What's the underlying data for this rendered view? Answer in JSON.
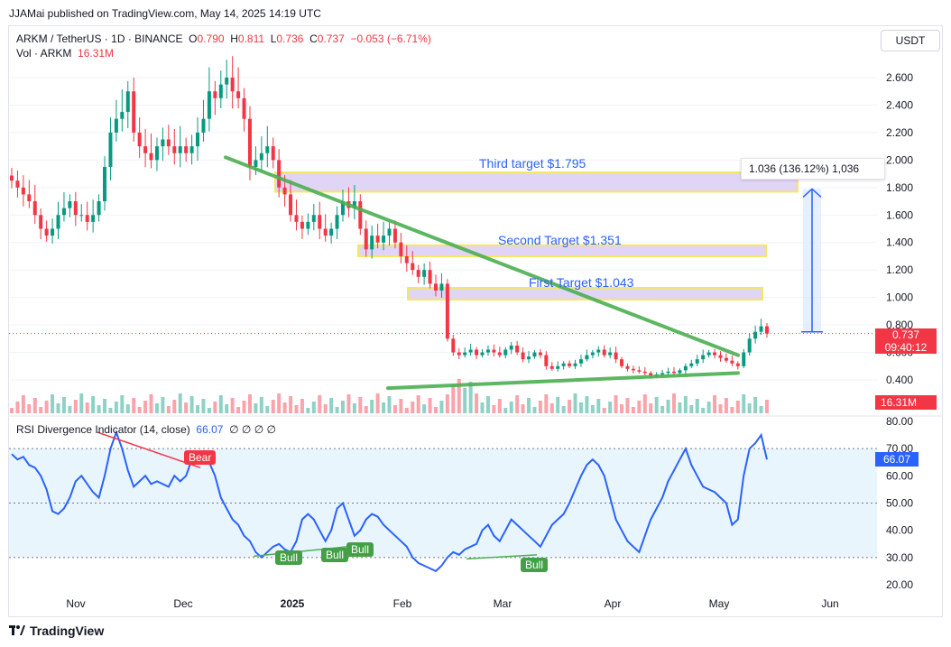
{
  "header": {
    "publisher": "JJAMai published on TradingView.com, May 14, 2025 14:19 UTC"
  },
  "symbol": {
    "name": "ARKM / TetherUS · 1D · BINANCE",
    "o_label": "O",
    "o": "0.790",
    "h_label": "H",
    "h": "0.811",
    "l_label": "L",
    "l": "0.736",
    "c_label": "C",
    "c": "0.737",
    "change": "−0.053 (−6.71%)",
    "vol_label": "Vol · ARKM",
    "vol": "16.31M"
  },
  "currency": "USDT",
  "price_axis": [
    "2.600",
    "2.400",
    "2.200",
    "2.000",
    "1.800",
    "1.600",
    "1.400",
    "1.200",
    "1.000",
    "0.800",
    "0.600",
    "0.400"
  ],
  "last_price": {
    "price": "0.737",
    "countdown": "09:40:12"
  },
  "volume_tag": "16.31M",
  "measure": {
    "text": "1.036 (136.12%) 1,036"
  },
  "targets": {
    "third": "Third target $1.795",
    "second": "Second Target $1.351",
    "first": "First Target $1.043"
  },
  "rsi": {
    "title": "RSI Divergence Indicator (14, close)",
    "value": "66.07",
    "extras": "∅ ∅ ∅ ∅",
    "axis": [
      "80.00",
      "70.00",
      "60.00",
      "50.00",
      "40.00",
      "30.00",
      "20.00"
    ],
    "tag": "66.07",
    "bear_label": "Bear",
    "bull_labels": [
      "Bull",
      "Bull",
      "Bull",
      "Bull"
    ]
  },
  "time_axis": [
    "Nov",
    "Dec",
    "2025",
    "Feb",
    "Mar",
    "Apr",
    "May",
    "Jun"
  ],
  "footer": {
    "brand": "TradingView"
  },
  "colors": {
    "up": "#089981",
    "down": "#f23645",
    "rsi": "#2962ff",
    "trend": "#4caf50",
    "zone_fill": "#e1d5f5",
    "zone_border": "#f5e663"
  },
  "chart_data": [
    {
      "type": "candlestick",
      "title": "ARKM / TetherUS · 1D · BINANCE",
      "ylim": [
        0.3,
        2.7
      ],
      "x": [
        "Nov",
        "Dec",
        "2025",
        "Feb",
        "Mar",
        "Apr",
        "May",
        "Jun"
      ],
      "last": {
        "open": 0.79,
        "high": 0.811,
        "low": 0.736,
        "close": 0.737
      },
      "targets": [
        1.043,
        1.351,
        1.795
      ],
      "closes": [
        1.85,
        1.8,
        1.75,
        1.7,
        1.6,
        1.5,
        1.45,
        1.5,
        1.6,
        1.65,
        1.7,
        1.6,
        1.6,
        1.55,
        1.6,
        1.7,
        1.95,
        2.2,
        2.3,
        2.35,
        2.5,
        2.2,
        2.1,
        2.05,
        2.0,
        2.1,
        2.15,
        2.1,
        2.05,
        2.1,
        2.05,
        2.1,
        2.2,
        2.3,
        2.5,
        2.45,
        2.55,
        2.6,
        2.5,
        2.45,
        2.3,
        1.95,
        2.0,
        2.05,
        2.1,
        2.0,
        1.8,
        1.75,
        1.6,
        1.55,
        1.5,
        1.55,
        1.6,
        1.5,
        1.45,
        1.5,
        1.6,
        1.7,
        1.65,
        1.7,
        1.5,
        1.35,
        1.45,
        1.4,
        1.45,
        1.5,
        1.4,
        1.3,
        1.25,
        1.2,
        1.15,
        1.2,
        1.1,
        1.05,
        1.1,
        0.7,
        0.6,
        0.58,
        0.6,
        0.62,
        0.58,
        0.6,
        0.62,
        0.6,
        0.58,
        0.62,
        0.65,
        0.6,
        0.55,
        0.57,
        0.6,
        0.58,
        0.5,
        0.48,
        0.5,
        0.52,
        0.5,
        0.52,
        0.55,
        0.58,
        0.6,
        0.62,
        0.58,
        0.6,
        0.55,
        0.5,
        0.48,
        0.47,
        0.46,
        0.45,
        0.43,
        0.44,
        0.45,
        0.46,
        0.45,
        0.47,
        0.5,
        0.52,
        0.55,
        0.58,
        0.6,
        0.58,
        0.56,
        0.54,
        0.52,
        0.5,
        0.6,
        0.7,
        0.75,
        0.79,
        0.737
      ]
    },
    {
      "type": "line",
      "title": "RSI Divergence Indicator (14, close)",
      "ylim": [
        20,
        80
      ],
      "series": [
        {
          "values": [
            68,
            66,
            67,
            64,
            63,
            60,
            55,
            47,
            46,
            48,
            52,
            58,
            60,
            57,
            54,
            52,
            60,
            70,
            76,
            70,
            62,
            56,
            58,
            60,
            57,
            58,
            57,
            56,
            60,
            58,
            60,
            66,
            68,
            66,
            65,
            60,
            52,
            48,
            44,
            42,
            38,
            36,
            32,
            30,
            32,
            34,
            35,
            33,
            32,
            36,
            44,
            46,
            44,
            40,
            36,
            40,
            48,
            50,
            44,
            38,
            40,
            44,
            46,
            45,
            42,
            40,
            38,
            36,
            34,
            30,
            28,
            27,
            26,
            25,
            27,
            30,
            32,
            31,
            33,
            34,
            35,
            40,
            42,
            38,
            36,
            40,
            44,
            42,
            40,
            38,
            36,
            34,
            38,
            42,
            44,
            46,
            50,
            55,
            60,
            64,
            66,
            64,
            60,
            52,
            44,
            40,
            36,
            34,
            32,
            38,
            44,
            48,
            52,
            58,
            62,
            66,
            70,
            64,
            60,
            56,
            55,
            54,
            52,
            50,
            42,
            44,
            60,
            70,
            72,
            75,
            66
          ]
        }
      ],
      "levels": [
        70,
        50,
        30
      ]
    }
  ]
}
